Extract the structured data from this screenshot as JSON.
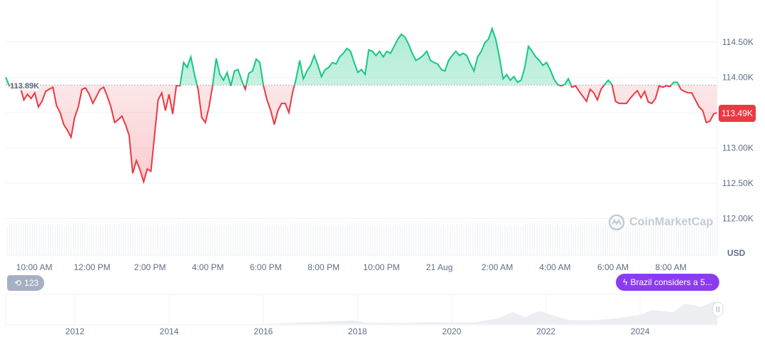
{
  "chart_data": {
    "type": "line",
    "currency_label": "USD",
    "baseline": {
      "value": 113.89,
      "label": "113.89K"
    },
    "current": {
      "value": 113.49,
      "label": "113.49K"
    },
    "ylim": [
      111.5,
      114.6
    ],
    "yticks": [
      "114.50K",
      "114.00K",
      "113.00K",
      "112.50K",
      "112.00K"
    ],
    "ytick_values": [
      114.5,
      114.0,
      113.0,
      112.5,
      112.0
    ],
    "xticks": [
      "10:00 AM",
      "12:00 PM",
      "2:00 PM",
      "4:00 PM",
      "6:00 PM",
      "8:00 PM",
      "10:00 PM",
      "21 Aug",
      "2:00 AM",
      "4:00 AM",
      "6:00 AM",
      "8:00 AM"
    ],
    "grid": true,
    "colors": {
      "up": "#16c784",
      "down": "#ea3943",
      "news": "#8c3cf0"
    },
    "values": [
      114.0,
      113.88,
      113.88,
      113.87,
      113.87,
      113.68,
      113.76,
      113.7,
      113.78,
      113.58,
      113.66,
      113.8,
      113.83,
      113.86,
      113.6,
      113.5,
      113.33,
      113.25,
      113.15,
      113.43,
      113.58,
      113.83,
      113.85,
      113.76,
      113.63,
      113.73,
      113.83,
      113.86,
      113.73,
      113.58,
      113.36,
      113.4,
      113.45,
      113.33,
      113.18,
      112.64,
      112.82,
      112.69,
      112.52,
      112.7,
      112.67,
      113.18,
      113.68,
      113.78,
      113.53,
      113.76,
      113.48,
      113.88,
      113.88,
      114.21,
      114.14,
      114.29,
      114.04,
      113.83,
      113.43,
      113.36,
      113.58,
      113.88,
      114.27,
      114.04,
      113.96,
      114.07,
      113.88,
      114.09,
      114.11,
      113.96,
      113.83,
      114.06,
      114.09,
      114.26,
      114.21,
      113.88,
      113.68,
      113.53,
      113.33,
      113.53,
      113.63,
      113.63,
      113.5,
      113.78,
      113.98,
      114.24,
      113.98,
      114.09,
      114.17,
      114.31,
      114.17,
      114.01,
      114.11,
      114.14,
      114.21,
      114.19,
      114.29,
      114.34,
      114.41,
      114.37,
      114.21,
      114.07,
      114.11,
      114.04,
      114.39,
      114.37,
      114.31,
      114.37,
      114.29,
      114.37,
      114.34,
      114.44,
      114.54,
      114.61,
      114.57,
      114.47,
      114.34,
      114.24,
      114.27,
      114.31,
      114.37,
      114.24,
      114.21,
      114.19,
      114.11,
      114.09,
      114.24,
      114.31,
      114.37,
      114.31,
      114.34,
      114.31,
      114.19,
      114.09,
      114.29,
      114.37,
      114.49,
      114.54,
      114.69,
      114.54,
      114.29,
      113.98,
      114.04,
      113.96,
      114.01,
      113.93,
      113.96,
      114.14,
      114.44,
      114.37,
      114.29,
      114.24,
      114.17,
      114.21,
      114.11,
      113.98,
      113.9,
      113.88,
      113.9,
      113.98,
      113.86,
      113.88,
      113.8,
      113.73,
      113.66,
      113.83,
      113.78,
      113.68,
      113.83,
      113.9,
      113.96,
      113.9,
      113.66,
      113.63,
      113.63,
      113.63,
      113.7,
      113.76,
      113.81,
      113.71,
      113.8,
      113.65,
      113.63,
      113.7,
      113.88,
      113.86,
      113.88,
      113.87,
      113.93,
      113.93,
      113.83,
      113.8,
      113.78,
      113.78,
      113.68,
      113.58,
      113.53,
      113.36,
      113.38,
      113.48,
      113.5
    ],
    "navigator": {
      "xticks": [
        "2012",
        "2014",
        "2016",
        "2018",
        "2020",
        "2022",
        "2024"
      ],
      "years": [
        2010.6,
        2013,
        2016,
        2017.9,
        2018.2,
        2019,
        2019.5,
        2020,
        2020.5,
        2021,
        2021.3,
        2021.55,
        2021.85,
        2022.2,
        2022.5,
        2023,
        2023.5,
        2024,
        2024.25,
        2024.7,
        2024.95,
        2025.3,
        2025.6
      ],
      "values": [
        0,
        0.5,
        1,
        19,
        8,
        6,
        11,
        8,
        10,
        30,
        60,
        35,
        65,
        40,
        20,
        20,
        29,
        45,
        70,
        58,
        100,
        85,
        115
      ]
    }
  },
  "history_badge": {
    "icon": "history-icon",
    "count": "123"
  },
  "news_badge": {
    "icon": "lightning-icon",
    "text": "Brazil considers a 5..."
  },
  "watermark": "CoinMarketCap"
}
